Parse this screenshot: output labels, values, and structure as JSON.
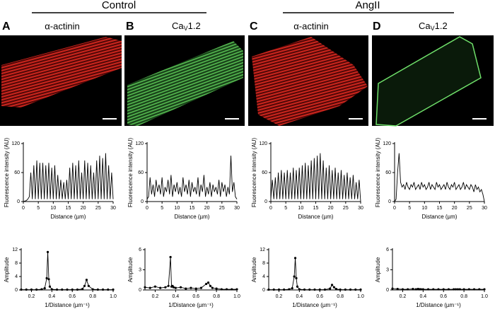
{
  "groups": [
    {
      "title": "Control"
    },
    {
      "title": "AngII"
    }
  ],
  "panels": [
    {
      "label": "A",
      "stain": "α-actinin"
    },
    {
      "label": "B",
      "stain": "Ca",
      "stain_sub": "V",
      "stain_rest": "1.2"
    },
    {
      "label": "C",
      "stain": "α-actinin"
    },
    {
      "label": "D",
      "stain": "Ca",
      "stain_sub": "V",
      "stain_rest": "1.2"
    }
  ],
  "chart_data": [
    {
      "type": "line",
      "color": "#000000",
      "xlabel": "Distance (µm)",
      "ylabel": "Fluorescence intensity (AU)",
      "xlim": [
        0,
        30
      ],
      "ylim": [
        0,
        120
      ],
      "xticks": [
        0,
        5,
        10,
        15,
        20,
        25,
        30
      ],
      "yticks": [
        0,
        60,
        120
      ],
      "x": [
        0,
        0.5,
        1,
        1.5,
        2,
        2.5,
        3,
        3.5,
        4,
        4.5,
        5,
        5.5,
        6,
        6.5,
        7,
        7.5,
        8,
        8.5,
        9,
        9.5,
        10,
        10.5,
        11,
        11.5,
        12,
        12.5,
        13,
        13.5,
        14,
        14.5,
        15,
        15.5,
        16,
        16.5,
        17,
        17.5,
        18,
        18.5,
        19,
        19.5,
        20,
        20.5,
        21,
        21.5,
        22,
        22.5,
        23,
        23.5,
        24,
        24.5,
        25,
        25.5,
        26,
        26.5,
        27,
        27.5,
        28,
        28.5,
        29,
        29.5,
        30
      ],
      "values": [
        0,
        1,
        2,
        5,
        10,
        60,
        5,
        75,
        5,
        85,
        5,
        80,
        5,
        80,
        5,
        75,
        5,
        80,
        5,
        70,
        5,
        75,
        5,
        55,
        5,
        45,
        5,
        40,
        5,
        45,
        5,
        70,
        5,
        80,
        5,
        75,
        5,
        85,
        5,
        60,
        5,
        85,
        5,
        80,
        5,
        75,
        5,
        60,
        5,
        85,
        5,
        95,
        5,
        90,
        5,
        100,
        5,
        75,
        5,
        60,
        5
      ]
    },
    {
      "type": "line",
      "color": "#000000",
      "xlabel": "Distance (µm)",
      "ylabel": "Fluorescence intensity (AU)",
      "xlim": [
        0,
        30
      ],
      "ylim": [
        0,
        120
      ],
      "xticks": [
        0,
        5,
        10,
        15,
        20,
        25,
        30
      ],
      "yticks": [
        0,
        60,
        120
      ],
      "x": [
        0,
        0.5,
        1,
        1.5,
        2,
        2.5,
        3,
        3.5,
        4,
        4.5,
        5,
        5.5,
        6,
        6.5,
        7,
        7.5,
        8,
        8.5,
        9,
        9.5,
        10,
        10.5,
        11,
        11.5,
        12,
        12.5,
        13,
        13.5,
        14,
        14.5,
        15,
        15.5,
        16,
        16.5,
        17,
        17.5,
        18,
        18.5,
        19,
        19.5,
        20,
        20.5,
        21,
        21.5,
        22,
        22.5,
        23,
        23.5,
        24,
        24.5,
        25,
        25.5,
        26,
        26.5,
        27,
        27.5,
        28,
        28.5,
        29,
        29.5,
        30
      ],
      "values": [
        5,
        10,
        50,
        15,
        35,
        10,
        45,
        20,
        35,
        15,
        50,
        10,
        30,
        20,
        45,
        15,
        55,
        10,
        35,
        20,
        40,
        15,
        30,
        10,
        50,
        20,
        35,
        15,
        45,
        10,
        40,
        20,
        30,
        15,
        50,
        10,
        35,
        20,
        55,
        10,
        30,
        15,
        40,
        10,
        35,
        20,
        30,
        15,
        45,
        10,
        40,
        20,
        35,
        10,
        30,
        15,
        95,
        20,
        40,
        10,
        5
      ]
    },
    {
      "type": "line",
      "color": "#000000",
      "xlabel": "Distance (µm)",
      "ylabel": "Fluorescence intensity (AU)",
      "xlim": [
        0,
        30
      ],
      "ylim": [
        0,
        120
      ],
      "xticks": [
        0,
        5,
        10,
        15,
        20,
        25,
        30
      ],
      "yticks": [
        0,
        60,
        120
      ],
      "x": [
        0,
        0.5,
        1,
        1.5,
        2,
        2.5,
        3,
        3.5,
        4,
        4.5,
        5,
        5.5,
        6,
        6.5,
        7,
        7.5,
        8,
        8.5,
        9,
        9.5,
        10,
        10.5,
        11,
        11.5,
        12,
        12.5,
        13,
        13.5,
        14,
        14.5,
        15,
        15.5,
        16,
        16.5,
        17,
        17.5,
        18,
        18.5,
        19,
        19.5,
        20,
        20.5,
        21,
        21.5,
        22,
        22.5,
        23,
        23.5,
        24,
        24.5,
        25,
        25.5,
        26,
        26.5,
        27,
        27.5,
        28,
        28.5,
        29,
        29.5,
        30
      ],
      "values": [
        5,
        45,
        5,
        50,
        5,
        60,
        5,
        65,
        5,
        60,
        5,
        65,
        5,
        60,
        5,
        70,
        5,
        65,
        5,
        70,
        5,
        75,
        5,
        80,
        5,
        75,
        5,
        85,
        5,
        90,
        5,
        95,
        5,
        100,
        5,
        85,
        5,
        70,
        5,
        75,
        5,
        65,
        5,
        70,
        5,
        60,
        5,
        65,
        5,
        55,
        5,
        60,
        5,
        50,
        5,
        55,
        5,
        40,
        5,
        45,
        0
      ]
    },
    {
      "type": "line",
      "color": "#000000",
      "xlabel": "Distance (µm)",
      "ylabel": "Fluorescence intensity (AU)",
      "xlim": [
        0,
        30
      ],
      "ylim": [
        0,
        120
      ],
      "xticks": [
        0,
        5,
        10,
        15,
        20,
        25,
        30
      ],
      "yticks": [
        0,
        60,
        120
      ],
      "x": [
        0,
        0.5,
        1,
        1.5,
        2,
        2.5,
        3,
        3.5,
        4,
        4.5,
        5,
        5.5,
        6,
        6.5,
        7,
        7.5,
        8,
        8.5,
        9,
        9.5,
        10,
        10.5,
        11,
        11.5,
        12,
        12.5,
        13,
        13.5,
        14,
        14.5,
        15,
        15.5,
        16,
        16.5,
        17,
        17.5,
        18,
        18.5,
        19,
        19.5,
        20,
        20.5,
        21,
        21.5,
        22,
        22.5,
        23,
        23.5,
        24,
        24.5,
        25,
        25.5,
        26,
        26.5,
        27,
        27.5,
        28,
        28.5,
        29,
        29.5,
        30
      ],
      "values": [
        0,
        5,
        60,
        100,
        40,
        30,
        35,
        25,
        40,
        30,
        25,
        35,
        30,
        40,
        25,
        30,
        35,
        25,
        40,
        30,
        35,
        25,
        30,
        40,
        25,
        35,
        30,
        25,
        40,
        30,
        35,
        25,
        30,
        35,
        25,
        40,
        30,
        25,
        35,
        30,
        40,
        25,
        30,
        35,
        25,
        30,
        40,
        25,
        35,
        30,
        25,
        35,
        30,
        20,
        35,
        25,
        30,
        20,
        25,
        15,
        0
      ]
    },
    {
      "type": "line",
      "markers": true,
      "color": "#000000",
      "xlabel": "1/Distance (µm⁻¹)",
      "ylabel": "Amplitude",
      "xlim": [
        0.1,
        1
      ],
      "ylim": [
        0,
        12
      ],
      "xticks": [
        0.2,
        0.4,
        0.6,
        0.8,
        {
          "value": 1,
          "label": "1.0"
        }
      ],
      "yticks": [
        0,
        4,
        8,
        12
      ],
      "x": [
        0.1,
        0.15,
        0.2,
        0.25,
        0.3,
        0.33,
        0.35,
        0.36,
        0.37,
        0.38,
        0.4,
        0.45,
        0.5,
        0.55,
        0.6,
        0.65,
        0.7,
        0.72,
        0.74,
        0.76,
        0.8,
        0.85,
        0.9,
        0.95,
        1
      ],
      "values": [
        0.1,
        0.1,
        0.1,
        0.1,
        0.2,
        0.5,
        3.5,
        11.3,
        3.2,
        1,
        0.2,
        0.1,
        0.1,
        0.1,
        0.1,
        0.1,
        0.3,
        1.2,
        3,
        1.2,
        0.2,
        0.1,
        0.1,
        0.1,
        0.1
      ]
    },
    {
      "type": "line",
      "markers": true,
      "color": "#000000",
      "xlabel": "1/Distance (µm⁻¹)",
      "ylabel": "Amplitude",
      "xlim": [
        0.1,
        1
      ],
      "ylim": [
        0,
        6
      ],
      "xticks": [
        0.2,
        0.4,
        0.6,
        0.8,
        {
          "value": 1,
          "label": "1.0"
        }
      ],
      "yticks": [
        0,
        3,
        6
      ],
      "x": [
        0.1,
        0.15,
        0.2,
        0.25,
        0.3,
        0.33,
        0.35,
        0.36,
        0.37,
        0.38,
        0.4,
        0.45,
        0.5,
        0.55,
        0.6,
        0.65,
        0.7,
        0.72,
        0.74,
        0.76,
        0.8,
        0.85,
        0.9,
        0.95,
        1
      ],
      "values": [
        0.4,
        0.3,
        0.5,
        0.3,
        0.4,
        0.6,
        4.9,
        0.5,
        0.6,
        0.4,
        0.3,
        0.4,
        0.2,
        0.3,
        0.2,
        0.3,
        0.9,
        1.1,
        0.6,
        0.3,
        0.2,
        0.1,
        0.1,
        0.1,
        0.1
      ]
    },
    {
      "type": "line",
      "markers": true,
      "color": "#000000",
      "xlabel": "1/Distance (µm⁻¹)",
      "ylabel": "Amplitude",
      "xlim": [
        0.1,
        1
      ],
      "ylim": [
        0,
        12
      ],
      "xticks": [
        0.2,
        0.4,
        0.6,
        0.8,
        {
          "value": 1,
          "label": "1.0"
        }
      ],
      "yticks": [
        0,
        4,
        8,
        12
      ],
      "x": [
        0.1,
        0.15,
        0.2,
        0.25,
        0.3,
        0.33,
        0.35,
        0.36,
        0.37,
        0.38,
        0.4,
        0.45,
        0.5,
        0.55,
        0.6,
        0.65,
        0.7,
        0.72,
        0.74,
        0.76,
        0.8,
        0.85,
        0.9,
        0.95,
        1
      ],
      "values": [
        0.1,
        0.1,
        0.1,
        0.1,
        0.2,
        0.5,
        4,
        9.5,
        3.5,
        1,
        0.2,
        0.1,
        0.1,
        0.1,
        0.1,
        0.1,
        0.4,
        1.5,
        0.8,
        0.3,
        0.1,
        0.1,
        0.1,
        0.1,
        0.1
      ]
    },
    {
      "type": "line",
      "markers": true,
      "color": "#000000",
      "xlabel": "1/Distance (µm⁻¹)",
      "ylabel": "Amplitude",
      "xlim": [
        0.1,
        1
      ],
      "ylim": [
        0,
        6
      ],
      "xticks": [
        0.2,
        0.4,
        0.6,
        0.8,
        {
          "value": 1,
          "label": "1.0"
        }
      ],
      "yticks": [
        0,
        3,
        6
      ],
      "x": [
        0.1,
        0.15,
        0.2,
        0.25,
        0.3,
        0.33,
        0.35,
        0.36,
        0.37,
        0.38,
        0.4,
        0.45,
        0.5,
        0.55,
        0.6,
        0.65,
        0.7,
        0.72,
        0.74,
        0.76,
        0.8,
        0.85,
        0.9,
        0.95,
        1
      ],
      "values": [
        0.2,
        0.15,
        0.1,
        0.1,
        0.15,
        0.1,
        0.15,
        0.1,
        0.1,
        0.1,
        0.1,
        0.1,
        0.1,
        0.1,
        0.1,
        0.1,
        0.1,
        0.1,
        0.1,
        0.1,
        0.1,
        0.1,
        0.1,
        0.1,
        0.1
      ]
    }
  ]
}
